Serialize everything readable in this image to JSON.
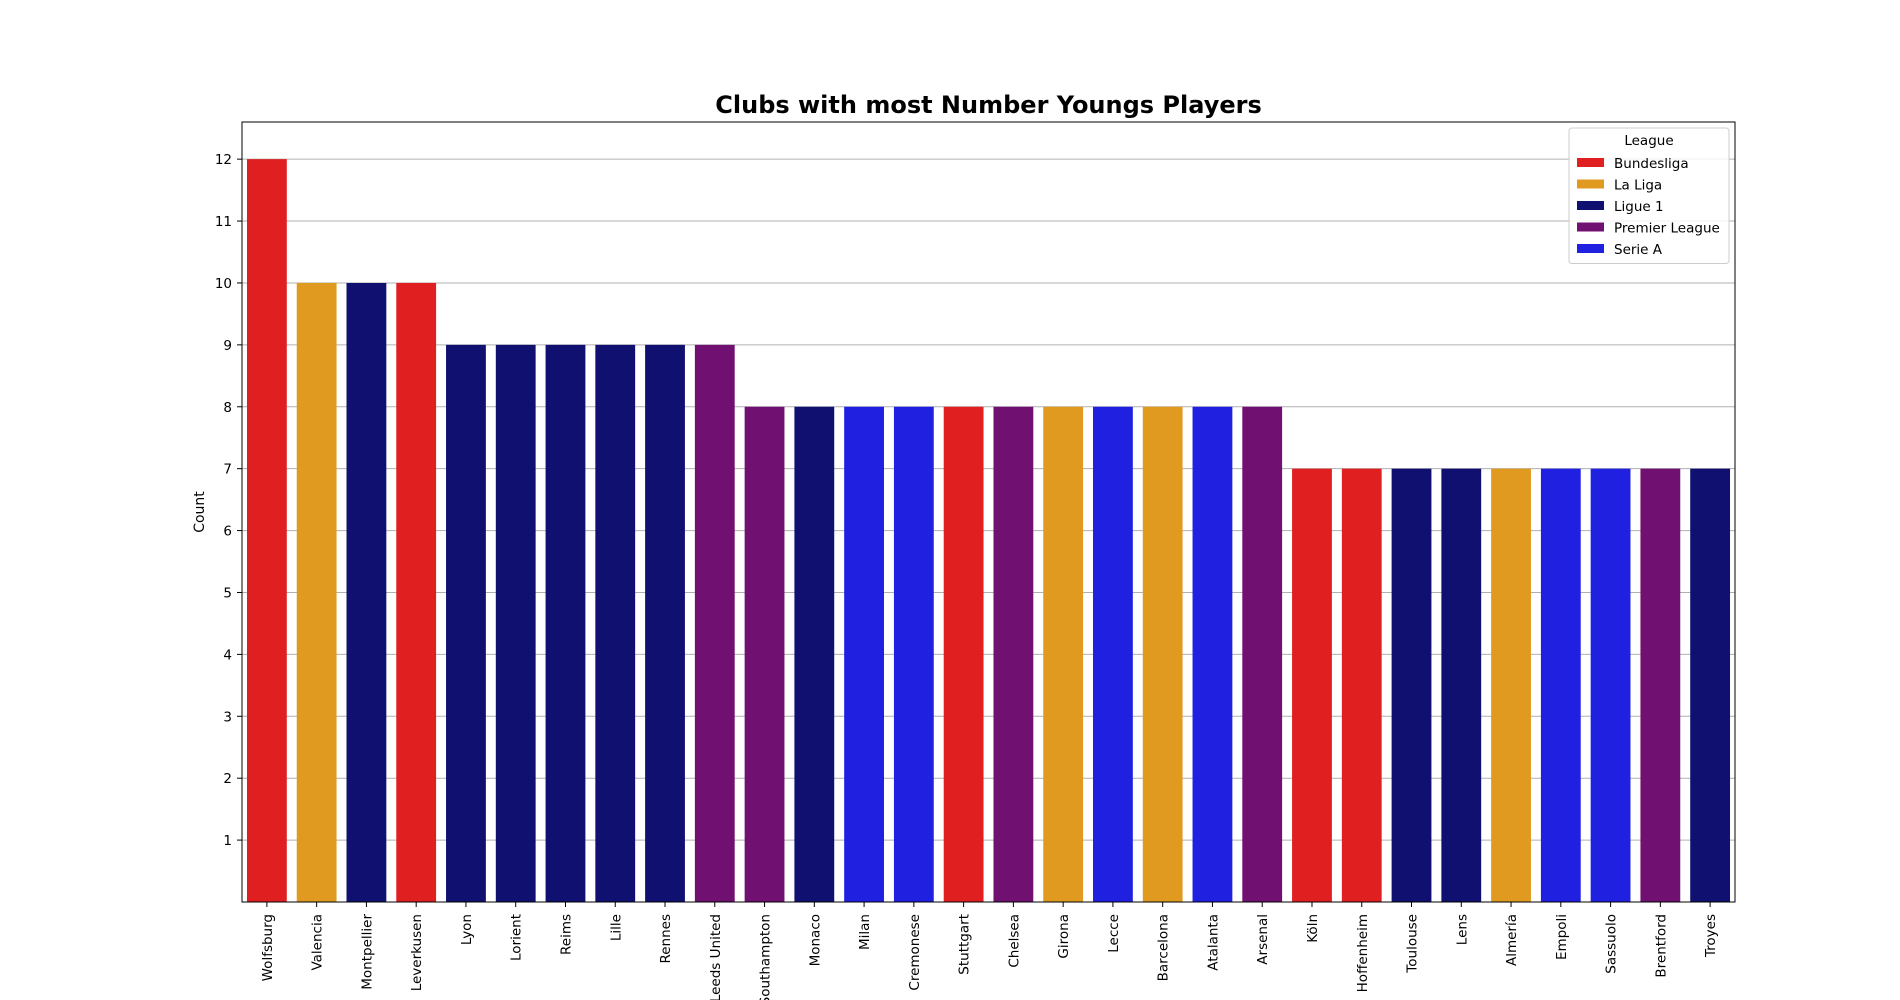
{
  "chart_data": {
    "type": "bar",
    "title": "Clubs with most Number Youngs Players",
    "xlabel": "",
    "ylabel": "Count",
    "ylim": [
      0,
      12.6
    ],
    "yticks": [
      1,
      2,
      3,
      4,
      5,
      6,
      7,
      8,
      9,
      10,
      11,
      12
    ],
    "grid": true,
    "legend_title": "League",
    "legend_placement": "top-right",
    "leagues": [
      {
        "name": "Bundesliga",
        "color": "#e02020"
      },
      {
        "name": "La Liga",
        "color": "#e09a20"
      },
      {
        "name": "Ligue 1",
        "color": "#101070"
      },
      {
        "name": "Premier League",
        "color": "#701070"
      },
      {
        "name": "Serie A",
        "color": "#2020e0"
      }
    ],
    "categories": [
      "Wolfsburg",
      "Valencia",
      "Montpellier",
      "Leverkusen",
      "Lyon",
      "Lorient",
      "Reims",
      "Lille",
      "Rennes",
      "Leeds United",
      "Southampton",
      "Monaco",
      "Milan",
      "Cremonese",
      "Stuttgart",
      "Chelsea",
      "Girona",
      "Lecce",
      "Barcelona",
      "Atalanta",
      "Arsenal",
      "Köln",
      "Hoffenheim",
      "Toulouse",
      "Lens",
      "Almería",
      "Empoli",
      "Sassuolo",
      "Brentford",
      "Troyes"
    ],
    "values": [
      12,
      10,
      10,
      10,
      9,
      9,
      9,
      9,
      9,
      9,
      8,
      8,
      8,
      8,
      8,
      8,
      8,
      8,
      8,
      8,
      8,
      7,
      7,
      7,
      7,
      7,
      7,
      7,
      7,
      7
    ],
    "league_of_bar": [
      "Bundesliga",
      "La Liga",
      "Ligue 1",
      "Bundesliga",
      "Ligue 1",
      "Ligue 1",
      "Ligue 1",
      "Ligue 1",
      "Ligue 1",
      "Premier League",
      "Premier League",
      "Ligue 1",
      "Serie A",
      "Serie A",
      "Bundesliga",
      "Premier League",
      "La Liga",
      "Serie A",
      "La Liga",
      "Serie A",
      "Premier League",
      "Bundesliga",
      "Bundesliga",
      "Ligue 1",
      "Ligue 1",
      "La Liga",
      "Serie A",
      "Serie A",
      "Premier League",
      "Ligue 1"
    ]
  }
}
